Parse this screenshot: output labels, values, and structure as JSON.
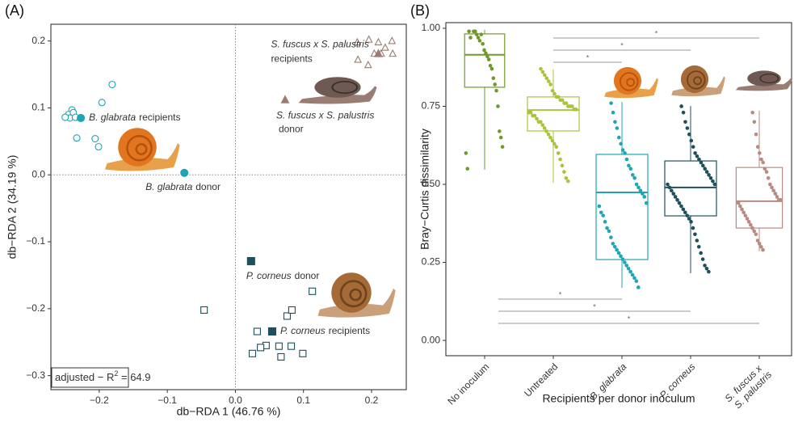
{
  "chart_data": [
    {
      "type": "scatter",
      "panel_label": "(A)",
      "x_label": "db−RDA 1 (46.76 %)",
      "y_label": "db−RDA 2 (34.19 %)",
      "xlim": [
        -0.271,
        0.251
      ],
      "ylim": [
        -0.321,
        0.225
      ],
      "xticks": [
        {
          "value": -0.2,
          "label": "−0.2"
        },
        {
          "value": -0.1,
          "label": "−0.1"
        },
        {
          "value": 0,
          "label": "0.0"
        },
        0.1,
        0.2
      ],
      "yticks": [
        {
          "value": -0.3,
          "label": "−0.3"
        },
        {
          "value": -0.2,
          "label": "−0.2"
        },
        {
          "value": -0.1,
          "label": "−0.1"
        },
        {
          "value": 0,
          "label": "0.0"
        },
        0.1,
        0.2
      ],
      "zero_lines": true,
      "groups": [
        {
          "name": "B. glabrata",
          "color": "#1fa5b3",
          "marker": "circle",
          "recipients_label": "recipients",
          "donor_label": "donor",
          "recipients": {
            "x": [
              -0.181,
              -0.196,
              -0.24,
              -0.245,
              -0.238,
              -0.243,
              -0.25,
              -0.235,
              -0.233,
              -0.206,
              -0.201
            ],
            "y": [
              0.135,
              0.108,
              0.097,
              0.09,
              0.093,
              0.085,
              0.086,
              0.086,
              0.055,
              0.054,
              0.042
            ]
          },
          "recipients_centroid": {
            "x": -0.227,
            "y": 0.085
          },
          "donor": {
            "x": -0.075,
            "y": 0.003
          }
        },
        {
          "name": "P. corneus",
          "color": "#1e4f5c",
          "marker": "square",
          "recipients_label": "recipients",
          "donor_label": "donor",
          "recipients": {
            "x": [
              -0.046,
              0.113,
              0.076,
              0.083,
              0.032,
              0.045,
              0.037,
              0.082,
              0.064,
              0.025,
              0.067,
              0.099
            ],
            "y": [
              -0.202,
              -0.174,
              -0.211,
              -0.202,
              -0.234,
              -0.255,
              -0.258,
              -0.256,
              -0.256,
              -0.267,
              -0.272,
              -0.267
            ]
          },
          "recipients_centroid": {
            "x": 0.054,
            "y": -0.234
          },
          "donor": {
            "x": 0.023,
            "y": -0.129
          }
        },
        {
          "name": "S. fuscus x S. palustris",
          "color": "#9c7b72",
          "marker": "triangle",
          "recipients_label": "recipients",
          "donor_label": "donor",
          "recipients": {
            "x": [
              0.179,
              0.196,
              0.21,
              0.23,
              0.22,
              0.214,
              0.231,
              0.204,
              0.18,
              0.195
            ],
            "y": [
              0.198,
              0.202,
              0.198,
              0.2,
              0.19,
              0.181,
              0.181,
              0.181,
              0.172,
              0.164
            ]
          },
          "recipients_centroid": {
            "x": 0.21,
            "y": 0.181
          },
          "donor": {
            "x": 0.073,
            "y": 0.112
          }
        }
      ],
      "annotation": [
        "adjusted − R",
        "2",
        " = 64.9"
      ]
    },
    {
      "type": "box",
      "panel_label": "(B)",
      "x_label": "Recipients per donor inoculum",
      "y_label": "Bray−Curtis dissimilarity",
      "ylim": [
        -0.049,
        1.018
      ],
      "yticks": [
        {
          "value": 0,
          "label": "0.00"
        },
        {
          "value": 0.25,
          "label": "0.25"
        },
        {
          "value": 0.5,
          "label": "0.50"
        },
        {
          "value": 0.75,
          "label": "0.75"
        },
        {
          "value": 1,
          "label": "1.00"
        }
      ],
      "categories": [
        "No inoculum",
        "Untreated",
        "B. glabrata",
        "P. corneus",
        "S. fuscus x S. palustris"
      ],
      "italic_categories": [
        false,
        false,
        true,
        true,
        true
      ],
      "boxes": [
        {
          "color": "#6f9a2a",
          "whislo": 0.547,
          "q1": 0.811,
          "med": 0.915,
          "q3": 0.982,
          "whishi": 0.995,
          "values": [
            0.99,
            0.99,
            0.98,
            0.97,
            0.96,
            0.98,
            0.95,
            0.93,
            0.92,
            0.91,
            0.9,
            0.88,
            0.87,
            0.84,
            0.82,
            0.8,
            0.75,
            0.67,
            0.65,
            0.62,
            0.6,
            0.55,
            0.99,
            0.97
          ]
        },
        {
          "color": "#a8c43a",
          "whislo": 0.505,
          "q1": 0.671,
          "med": 0.738,
          "q3": 0.78,
          "whishi": 0.868,
          "values": [
            0.87,
            0.86,
            0.85,
            0.84,
            0.83,
            0.82,
            0.8,
            0.79,
            0.78,
            0.78,
            0.77,
            0.77,
            0.76,
            0.76,
            0.75,
            0.75,
            0.75,
            0.74,
            0.74,
            0.73,
            0.73,
            0.72,
            0.72,
            0.71,
            0.7,
            0.7,
            0.69,
            0.68,
            0.67,
            0.66,
            0.65,
            0.64,
            0.63,
            0.62,
            0.6,
            0.58,
            0.56,
            0.54,
            0.52,
            0.51
          ]
        },
        {
          "color": "#1fa5b3",
          "whislo": 0.168,
          "q1": 0.259,
          "med": 0.474,
          "q3": 0.596,
          "whishi": 0.764,
          "values": [
            0.76,
            0.73,
            0.7,
            0.68,
            0.65,
            0.63,
            0.61,
            0.6,
            0.58,
            0.56,
            0.55,
            0.53,
            0.52,
            0.5,
            0.49,
            0.48,
            0.47,
            0.46,
            0.44,
            0.43,
            0.41,
            0.4,
            0.38,
            0.36,
            0.35,
            0.33,
            0.31,
            0.3,
            0.29,
            0.28,
            0.27,
            0.26,
            0.25,
            0.24,
            0.23,
            0.22,
            0.21,
            0.2,
            0.19,
            0.17
          ]
        },
        {
          "color": "#1e4f5c",
          "whislo": 0.215,
          "q1": 0.399,
          "med": 0.49,
          "q3": 0.575,
          "whishi": 0.751,
          "values": [
            0.75,
            0.73,
            0.7,
            0.68,
            0.66,
            0.64,
            0.62,
            0.6,
            0.59,
            0.58,
            0.57,
            0.56,
            0.55,
            0.54,
            0.53,
            0.52,
            0.51,
            0.5,
            0.5,
            0.49,
            0.48,
            0.47,
            0.46,
            0.45,
            0.44,
            0.43,
            0.42,
            0.41,
            0.4,
            0.39,
            0.38,
            0.36,
            0.34,
            0.32,
            0.3,
            0.28,
            0.26,
            0.24,
            0.23,
            0.22
          ]
        },
        {
          "color": "#b98a80",
          "whislo": 0.285,
          "q1": 0.36,
          "med": 0.446,
          "q3": 0.554,
          "whishi": 0.736,
          "values": [
            0.73,
            0.7,
            0.66,
            0.62,
            0.6,
            0.58,
            0.57,
            0.55,
            0.54,
            0.52,
            0.5,
            0.49,
            0.48,
            0.47,
            0.46,
            0.45,
            0.45,
            0.44,
            0.43,
            0.42,
            0.41,
            0.4,
            0.39,
            0.38,
            0.37,
            0.36,
            0.35,
            0.34,
            0.32,
            0.31,
            0.3,
            0.29
          ]
        }
      ],
      "comparisons": [
        {
          "groups": [
            "Untreated",
            "B. glabrata"
          ],
          "label": "*",
          "position": "top"
        },
        {
          "groups": [
            "Untreated",
            "P. corneus"
          ],
          "label": "*",
          "position": "top"
        },
        {
          "groups": [
            "Untreated",
            "S. fuscus x S. palustris"
          ],
          "label": "*",
          "position": "top"
        },
        {
          "groups": [
            "No inoculum",
            "B. glabrata"
          ],
          "label": "*",
          "position": "bottom"
        },
        {
          "groups": [
            "No inoculum",
            "P. corneus"
          ],
          "label": "*",
          "position": "bottom"
        },
        {
          "groups": [
            "No inoculum",
            "S. fuscus x S. palustris"
          ],
          "label": "*",
          "position": "bottom"
        }
      ]
    }
  ]
}
